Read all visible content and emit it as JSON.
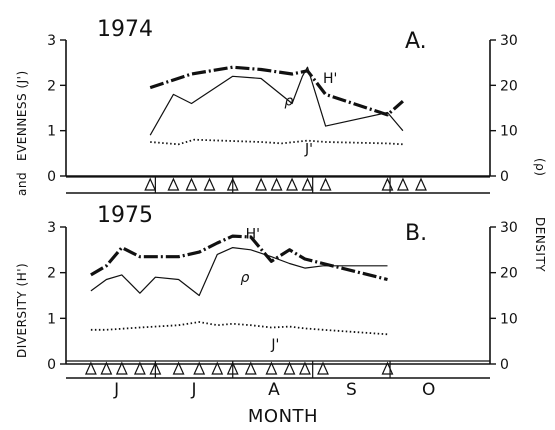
{
  "figure": {
    "left_ylabel": "DIVERSITY (H')   and   EVENNESS (J')",
    "right_ylabel": "DENSITY (ρ)",
    "xlabel": "MONTH"
  },
  "chart_data": [
    {
      "type": "line",
      "panel_label": "A.",
      "year_label": "1974",
      "left_axis_label": "EVENNESS (J')",
      "right_axis_label": "(ρ)",
      "left_ylim": [
        0,
        3
      ],
      "right_ylim": [
        0,
        30
      ],
      "left_ticks": [
        "0",
        "1",
        "2",
        "3"
      ],
      "right_ticks": [
        "0",
        "10",
        "20",
        "30"
      ],
      "xlim": [
        1,
        153
      ],
      "months": [
        {
          "label": "J",
          "x": 16
        },
        {
          "label": "J",
          "x": 46
        },
        {
          "label": "A",
          "x": 77
        },
        {
          "label": "S",
          "x": 107
        },
        {
          "label": "O",
          "x": 137
        }
      ],
      "month_boundaries": [
        31,
        61,
        92,
        122
      ],
      "sampling_dates": [
        29,
        38,
        45,
        52,
        61,
        72,
        78,
        84,
        90,
        97,
        121,
        127,
        134
      ],
      "series": [
        {
          "name": "H'",
          "axis": "left",
          "style": "thick-dashdot",
          "x": [
            29,
            45,
            61,
            72,
            84,
            90,
            97,
            121,
            127
          ],
          "values": [
            1.95,
            2.25,
            2.4,
            2.35,
            2.25,
            2.32,
            1.8,
            1.35,
            1.65
          ]
        },
        {
          "name": "ρ",
          "axis": "right",
          "style": "thin",
          "x": [
            29,
            38,
            45,
            61,
            72,
            84,
            88,
            90,
            97,
            121,
            127
          ],
          "values": [
            9,
            18,
            16,
            22,
            21.5,
            16,
            22,
            24,
            11,
            14,
            10
          ]
        },
        {
          "name": "J'",
          "axis": "left",
          "style": "dotted",
          "x": [
            29,
            40,
            46,
            72,
            80,
            90,
            97,
            121,
            127
          ],
          "values": [
            0.75,
            0.7,
            0.8,
            0.75,
            0.72,
            0.78,
            0.75,
            0.72,
            0.7
          ]
        }
      ]
    },
    {
      "type": "line",
      "panel_label": "B.",
      "year_label": "1975",
      "left_axis_label": "DIVERSITY (H')",
      "right_axis_label": "DENSITY",
      "left_ylim": [
        0,
        3
      ],
      "right_ylim": [
        0,
        30
      ],
      "left_ticks": [
        "0",
        "1",
        "2",
        "3"
      ],
      "right_ticks": [
        "0",
        "10",
        "20",
        "30"
      ],
      "xlim": [
        1,
        153
      ],
      "months": [
        {
          "label": "J",
          "x": 16
        },
        {
          "label": "J",
          "x": 46
        },
        {
          "label": "A",
          "x": 77
        },
        {
          "label": "S",
          "x": 107
        },
        {
          "label": "O",
          "x": 137
        }
      ],
      "month_boundaries": [
        31,
        61,
        92,
        122
      ],
      "sampling_dates": [
        6,
        12,
        18,
        25,
        31,
        40,
        48,
        55,
        61,
        68,
        76,
        83,
        89,
        96,
        121
      ],
      "series": [
        {
          "name": "H'",
          "axis": "left",
          "style": "thick-dashdot",
          "x": [
            6,
            12,
            18,
            25,
            40,
            48,
            55,
            61,
            68,
            76,
            83,
            89,
            96,
            121
          ],
          "values": [
            1.95,
            2.15,
            2.55,
            2.35,
            2.35,
            2.45,
            2.65,
            2.8,
            2.78,
            2.25,
            2.5,
            2.3,
            2.2,
            1.85
          ]
        },
        {
          "name": "ρ",
          "axis": "right",
          "style": "thin",
          "x": [
            6,
            12,
            18,
            25,
            31,
            40,
            48,
            55,
            61,
            68,
            76,
            83,
            89,
            96,
            121
          ],
          "values": [
            16,
            18.5,
            19.5,
            15.5,
            19,
            18.5,
            15,
            24,
            25.5,
            25,
            23.5,
            22,
            21,
            21.5,
            21.5
          ]
        },
        {
          "name": "J'",
          "axis": "left",
          "style": "dotted",
          "x": [
            6,
            12,
            25,
            40,
            48,
            55,
            61,
            68,
            76,
            83,
            89,
            96,
            121
          ],
          "values": [
            0.75,
            0.75,
            0.8,
            0.85,
            0.92,
            0.85,
            0.88,
            0.85,
            0.8,
            0.82,
            0.78,
            0.75,
            0.65
          ]
        }
      ]
    }
  ]
}
